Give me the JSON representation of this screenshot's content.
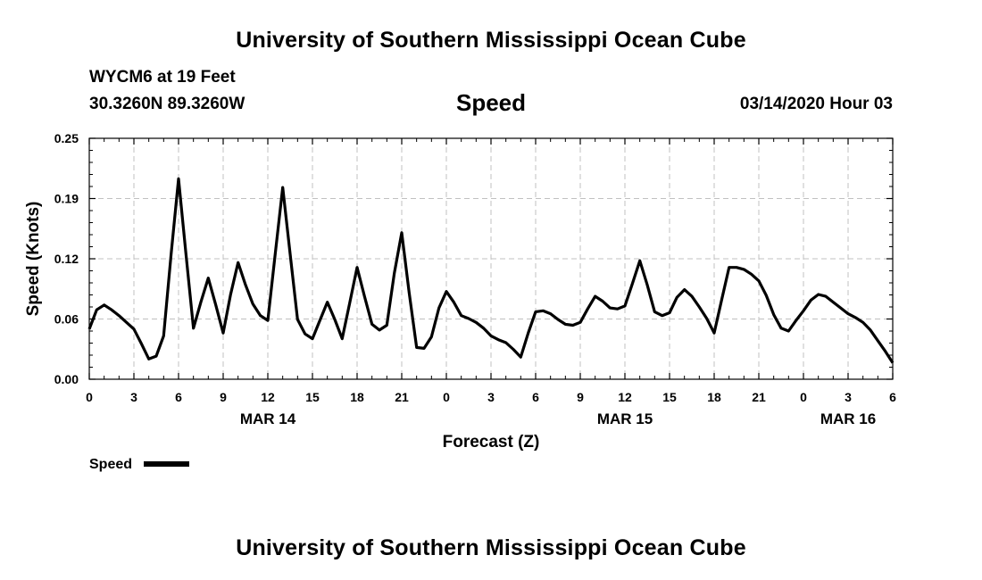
{
  "header": {
    "title": "University of Southern Mississippi Ocean Cube",
    "station_line": "WYCM6 at 19 Feet",
    "coords_line": "30.3260N 89.3260W",
    "subtitle": "Speed",
    "datetime": "03/14/2020 Hour 03"
  },
  "footer": {
    "title": "University of Southern Mississippi Ocean Cube"
  },
  "colors": {
    "line": "#000000",
    "grid": "#c0c0c0",
    "background": "#ffffff"
  },
  "chart_data": {
    "type": "line",
    "title": "Speed",
    "xlabel": "Forecast (Z)",
    "ylabel": "Speed (Knots)",
    "ylim": [
      0.0,
      0.25
    ],
    "y_ticks": [
      "0.00",
      "0.06",
      "0.12",
      "0.19",
      "0.25"
    ],
    "y_tick_values": [
      0.0,
      0.0625,
      0.125,
      0.1875,
      0.25
    ],
    "xlim": [
      0,
      54
    ],
    "x_tick_labels": [
      "0",
      "3",
      "6",
      "9",
      "12",
      "15",
      "18",
      "21",
      "0",
      "3",
      "6",
      "9",
      "12",
      "15",
      "18",
      "21",
      "0",
      "3",
      "6"
    ],
    "x_tick_values": [
      0,
      3,
      6,
      9,
      12,
      15,
      18,
      21,
      24,
      27,
      30,
      33,
      36,
      39,
      42,
      45,
      48,
      51,
      54
    ],
    "date_labels": [
      {
        "label": "MAR 14",
        "x": 12
      },
      {
        "label": "MAR 15",
        "x": 36
      },
      {
        "label": "MAR 16",
        "x": 51
      }
    ],
    "grid": true,
    "legend_position": "bottom-left",
    "series": [
      {
        "name": "Speed",
        "x": [
          0,
          0.5,
          1,
          1.5,
          2,
          2.5,
          3,
          3.5,
          4,
          4.5,
          5,
          5.5,
          6,
          6.5,
          7,
          7.5,
          8,
          8.5,
          9,
          9.5,
          10,
          10.5,
          11,
          11.5,
          12,
          12.5,
          13,
          13.5,
          14,
          14.5,
          15,
          15.5,
          16,
          16.5,
          17,
          17.5,
          18,
          18.5,
          19,
          19.5,
          20,
          20.5,
          21,
          21.5,
          22,
          22.5,
          23,
          23.5,
          24,
          24.5,
          25,
          25.5,
          26,
          26.5,
          27,
          27.5,
          28,
          28.5,
          29,
          29.5,
          30,
          30.5,
          31,
          31.5,
          32,
          32.5,
          33,
          33.5,
          34,
          34.5,
          35,
          35.5,
          36,
          36.5,
          37,
          37.5,
          38,
          38.5,
          39,
          39.5,
          40,
          40.5,
          41,
          41.5,
          42,
          42.5,
          43,
          43.5,
          44,
          44.5,
          45,
          45.5,
          46,
          46.5,
          47,
          47.5,
          48,
          48.5,
          49,
          49.5,
          50,
          50.5,
          51,
          51.5,
          52,
          52.5,
          53,
          53.5,
          54
        ],
        "values": [
          0.052,
          0.072,
          0.077,
          0.072,
          0.066,
          0.059,
          0.052,
          0.037,
          0.021,
          0.024,
          0.045,
          0.13,
          0.208,
          0.13,
          0.053,
          0.08,
          0.105,
          0.077,
          0.048,
          0.088,
          0.121,
          0.098,
          0.078,
          0.066,
          0.061,
          0.13,
          0.199,
          0.13,
          0.062,
          0.047,
          0.042,
          0.061,
          0.08,
          0.062,
          0.042,
          0.079,
          0.116,
          0.086,
          0.057,
          0.051,
          0.056,
          0.11,
          0.152,
          0.09,
          0.033,
          0.032,
          0.044,
          0.074,
          0.091,
          0.08,
          0.066,
          0.063,
          0.059,
          0.053,
          0.045,
          0.041,
          0.038,
          0.031,
          0.023,
          0.048,
          0.07,
          0.071,
          0.068,
          0.062,
          0.057,
          0.056,
          0.059,
          0.073,
          0.086,
          0.081,
          0.074,
          0.073,
          0.076,
          0.099,
          0.123,
          0.098,
          0.07,
          0.066,
          0.069,
          0.085,
          0.093,
          0.086,
          0.075,
          0.063,
          0.048,
          0.082,
          0.116,
          0.116,
          0.114,
          0.109,
          0.102,
          0.087,
          0.067,
          0.053,
          0.05,
          0.061,
          0.071,
          0.082,
          0.088,
          0.086,
          0.08,
          0.074,
          0.068,
          0.064,
          0.059,
          0.051,
          0.04,
          0.029,
          0.017
        ]
      }
    ]
  }
}
